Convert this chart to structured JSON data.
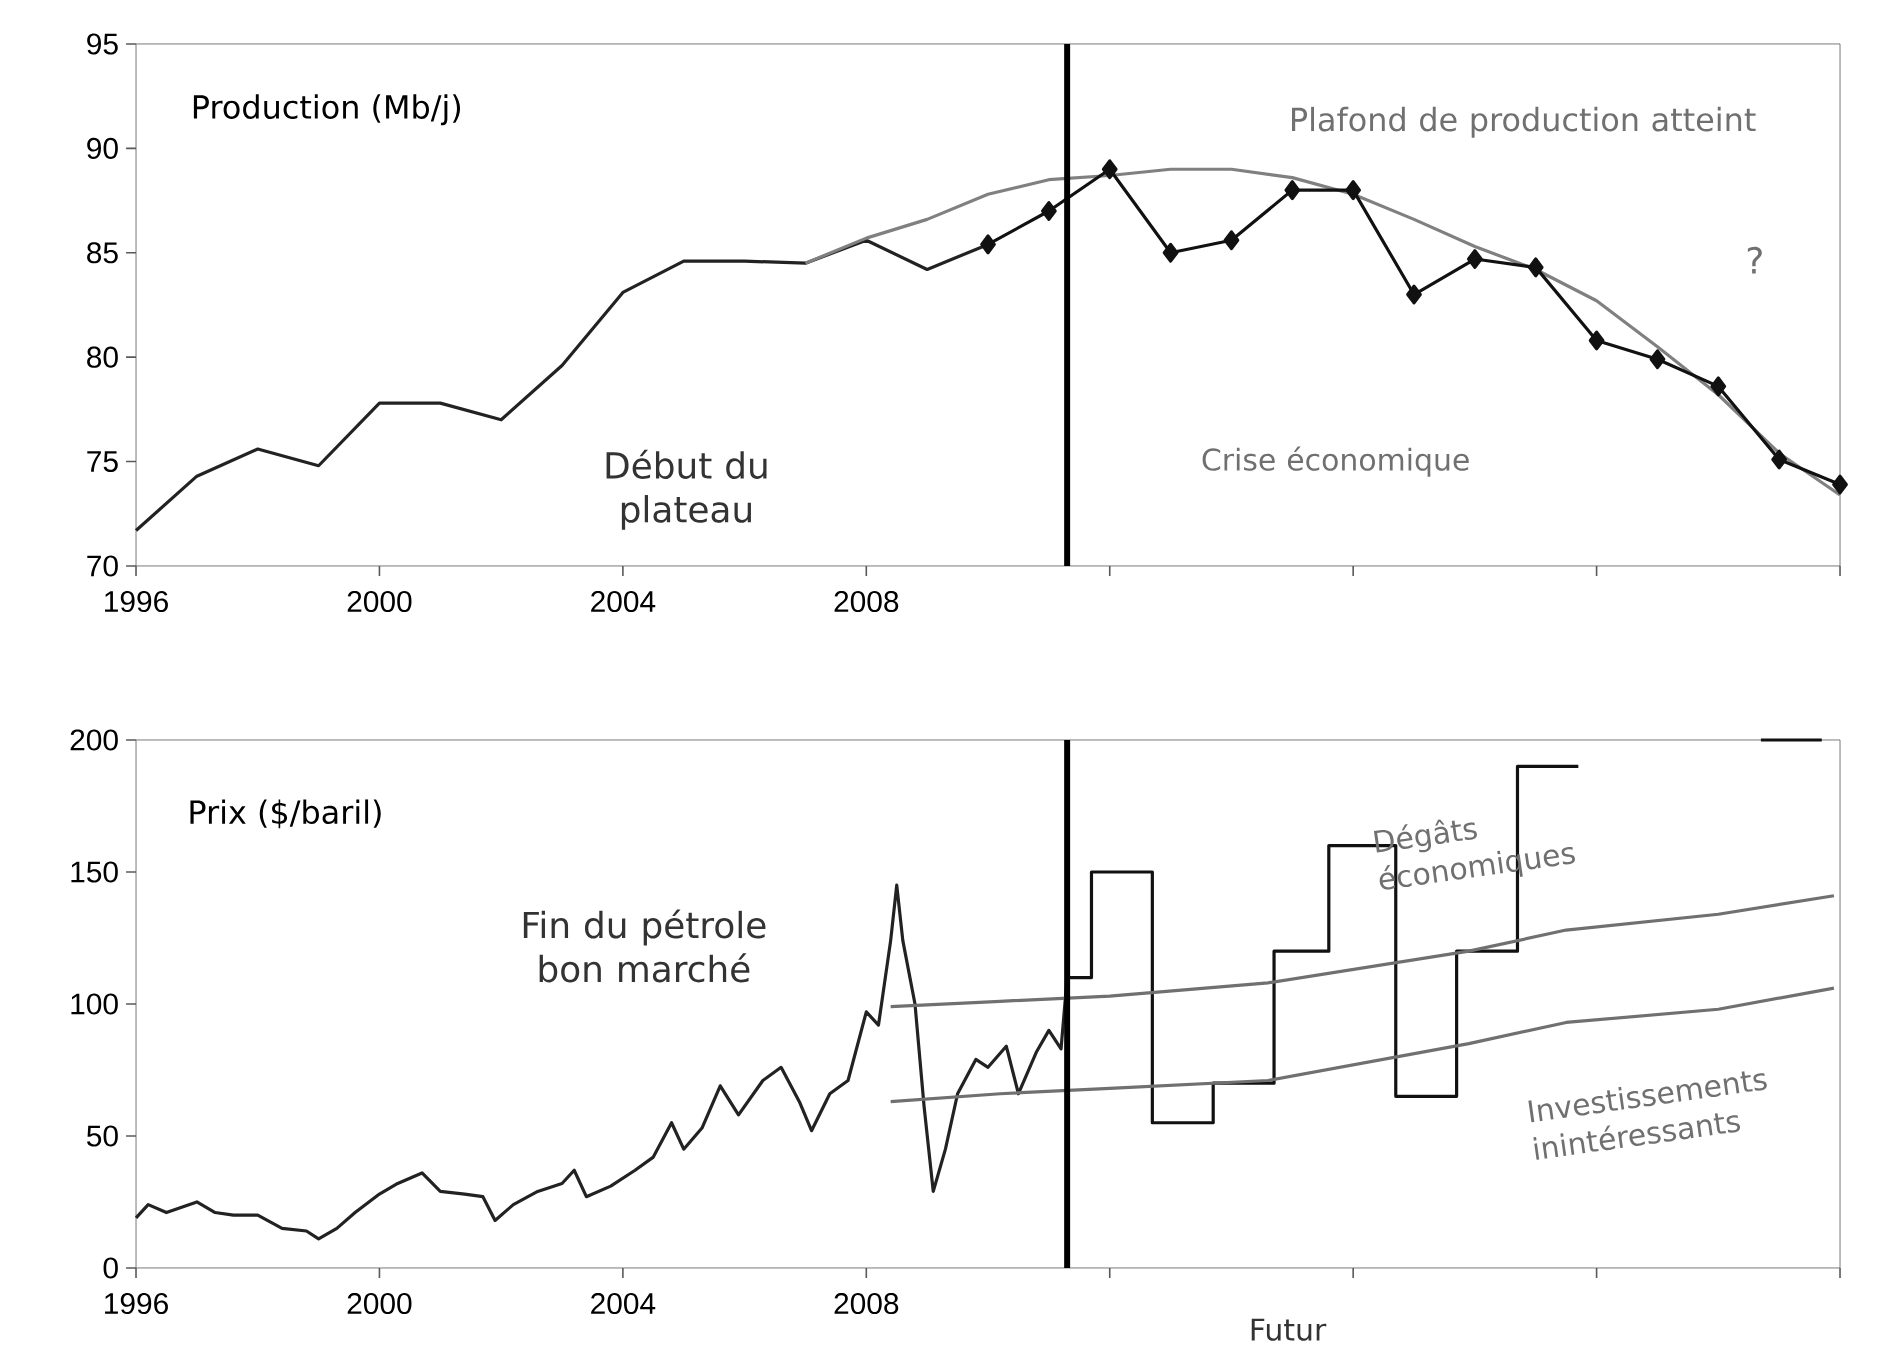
{
  "chart_data": [
    {
      "type": "line",
      "ylabel": "Production (Mb/j)",
      "xlim": [
        1996,
        2024
      ],
      "xticks": [
        1996,
        2000,
        2004,
        2008,
        {
          "value": 2012,
          "label": null
        },
        {
          "value": 2016,
          "label": null
        },
        {
          "value": 2020,
          "label": null
        },
        {
          "value": 2024,
          "label": null
        }
      ],
      "ylim": [
        70,
        95
      ],
      "yticks": [
        70,
        75,
        80,
        85,
        90,
        95
      ],
      "series": [
        {
          "color": "#222222",
          "marker": "none",
          "x": [
            1996,
            1997,
            1998,
            1999,
            2000,
            2001,
            2002,
            2003,
            2004,
            2005,
            2006,
            2007,
            2008,
            2009,
            2010
          ],
          "values": [
            71.7,
            74.3,
            75.6,
            74.8,
            77.8,
            77.8,
            77.0,
            79.6,
            83.1,
            84.6,
            84.6,
            84.5,
            85.6,
            84.2,
            85.4
          ]
        },
        {
          "color": "#808080",
          "marker": "none",
          "x": [
            2007,
            2008,
            2009,
            2010,
            2011,
            2012,
            2013,
            2014,
            2015,
            2016,
            2017,
            2018,
            2019,
            2020,
            2021,
            2022,
            2023,
            2024
          ],
          "values": [
            84.5,
            85.7,
            86.6,
            87.8,
            88.5,
            88.7,
            89.0,
            89.0,
            88.6,
            87.8,
            86.6,
            85.3,
            84.2,
            82.7,
            80.5,
            78.2,
            75.4,
            73.4
          ]
        },
        {
          "color": "#111111",
          "marker": "diamond",
          "x": [
            2010,
            2011,
            2012,
            2013,
            2014,
            2015,
            2016,
            2017,
            2018,
            2019,
            2020,
            2021,
            2022,
            2023,
            2024
          ],
          "values": [
            85.4,
            87.0,
            89.0,
            85.0,
            85.6,
            88.0,
            88.0,
            83.0,
            84.7,
            84.3,
            80.8,
            79.9,
            78.6,
            75.1,
            73.9
          ]
        }
      ],
      "ref_lines": [
        {
          "axis": "x",
          "value": 2011.3,
          "color": "#000000"
        }
      ],
      "annotations": [
        "Début du plateau",
        "Plafond de production atteint",
        "Crise économique",
        "?"
      ]
    },
    {
      "type": "line",
      "ylabel": "Prix ($/baril)",
      "xlim": [
        1996,
        2024
      ],
      "xticks": [
        1996,
        2000,
        2004,
        2008,
        {
          "value": 2012,
          "label": null
        },
        {
          "value": 2016,
          "label": null
        },
        {
          "value": 2020,
          "label": null
        },
        {
          "value": 2024,
          "label": null
        }
      ],
      "ylim": [
        0,
        200
      ],
      "yticks": [
        0,
        50,
        100,
        150,
        200
      ],
      "series": [
        {
          "color": "#222222",
          "marker": "none",
          "x": [
            1996.0,
            1996.2,
            1996.5,
            1997.0,
            1997.3,
            1997.6,
            1998.0,
            1998.4,
            1998.8,
            1999.0,
            1999.3,
            1999.6,
            2000.0,
            2000.3,
            2000.7,
            2001.0,
            2001.4,
            2001.7,
            2001.9,
            2002.2,
            2002.6,
            2003.0,
            2003.2,
            2003.4,
            2003.8,
            2004.2,
            2004.5,
            2004.8,
            2005.0,
            2005.3,
            2005.6,
            2005.9,
            2006.3,
            2006.6,
            2006.9,
            2007.1,
            2007.4,
            2007.7,
            2008.0,
            2008.2,
            2008.4,
            2008.5,
            2008.6,
            2008.8,
            2008.95,
            2009.1,
            2009.3,
            2009.5,
            2009.8,
            2010.0,
            2010.3,
            2010.5,
            2010.8,
            2011.0,
            2011.2,
            2011.3
          ],
          "values": [
            19,
            24,
            21,
            25,
            21,
            20,
            20,
            15,
            14,
            11,
            15,
            21,
            28,
            32,
            36,
            29,
            28,
            27,
            18,
            24,
            29,
            32,
            37,
            27,
            31,
            37,
            42,
            55,
            45,
            53,
            69,
            58,
            71,
            76,
            63,
            52,
            66,
            71,
            97,
            92,
            124,
            145,
            124,
            100,
            61,
            29,
            45,
            66,
            79,
            76,
            84,
            66,
            82,
            90,
            83,
            110
          ]
        },
        {
          "type": "step",
          "color": "#111111",
          "marker": "none",
          "x": [
            2011.3,
            2011.7,
            2012.7,
            2013.7,
            2014.7,
            2015.6,
            2016.7,
            2017.7,
            2018.7,
            2019.7,
            2020.6,
            2022.7,
            2023.7
          ],
          "values": [
            110,
            150,
            55,
            70,
            120,
            160,
            65,
            120,
            190,
            190,
            null,
            200,
            200
          ]
        },
        {
          "color": "#707070",
          "marker": "none",
          "x": [
            2008.4,
            2010.2,
            2012,
            2014.6,
            2017.9,
            2019.5,
            2022,
            2023.9
          ],
          "values": [
            99,
            101,
            103,
            108,
            120,
            128,
            134,
            141
          ]
        },
        {
          "color": "#707070",
          "marker": "none",
          "x": [
            2008.4,
            2010.2,
            2012,
            2014.6,
            2017.9,
            2019.5,
            2022,
            2023.9
          ],
          "values": [
            63,
            66,
            68,
            71,
            85,
            93,
            98,
            106
          ]
        }
      ],
      "ref_lines": [
        {
          "axis": "x",
          "value": 2011.3,
          "color": "#000000"
        }
      ],
      "annotations": [
        "Fin du pétrole bon marché",
        "Dégâts économiques",
        "Investissements inintéressants",
        "Futur"
      ]
    }
  ]
}
